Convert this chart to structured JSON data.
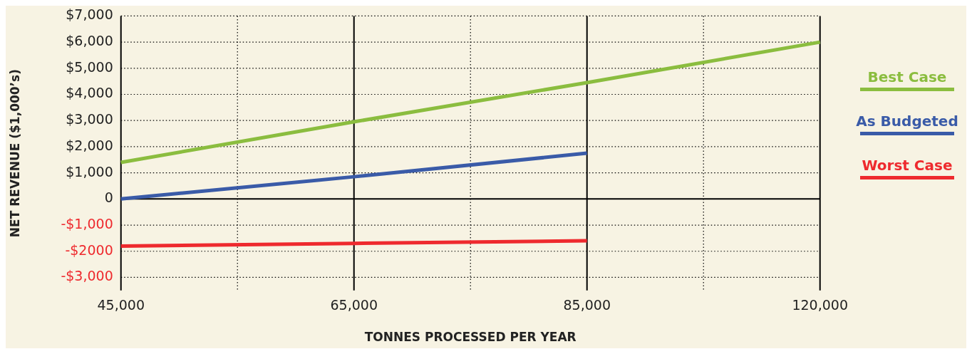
{
  "chart_data": {
    "type": "line",
    "xlabel": "TONNES PROCESSED PER YEAR",
    "ylabel": "NET REVENUE ($1,000’s)",
    "categories": [
      "45,000",
      null,
      "65,000",
      null,
      "85,000",
      null,
      "120,000"
    ],
    "series": [
      {
        "name": "Best Case",
        "color": "#8bbd3f",
        "values": [
          1400,
          null,
          2950,
          null,
          4450,
          null,
          6000
        ]
      },
      {
        "name": "As Budgeted",
        "color": "#3a5ba8",
        "values": [
          0,
          null,
          850,
          null,
          1750,
          null,
          null
        ]
      },
      {
        "name": "Worst Case",
        "color": "#ee2a2e",
        "values": [
          -1800,
          null,
          -1700,
          null,
          -1600,
          null,
          null
        ]
      }
    ],
    "ylim": [
      -3500,
      7000
    ],
    "yticks": [
      {
        "value": -3000,
        "label": "-$3,000"
      },
      {
        "value": -2000,
        "label": "-$2000"
      },
      {
        "value": -1000,
        "label": "-$1,000"
      },
      {
        "value": 0,
        "label": "0"
      },
      {
        "value": 1000,
        "label": "$1,000"
      },
      {
        "value": 2000,
        "label": "$2,000"
      },
      {
        "value": 3000,
        "label": "$3,000"
      },
      {
        "value": 4000,
        "label": "$4,000"
      },
      {
        "value": 5000,
        "label": "$5,000"
      },
      {
        "value": 6000,
        "label": "$6,000"
      },
      {
        "value": 7000,
        "label": "$7,000"
      }
    ],
    "grid": true,
    "legend": "right",
    "marker": "none",
    "line_style": "solid"
  }
}
